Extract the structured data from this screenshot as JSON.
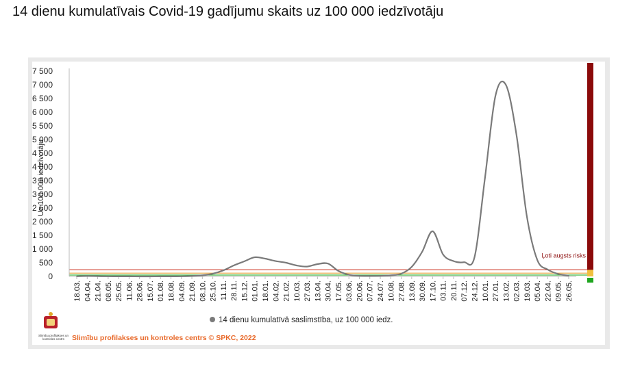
{
  "title": "14 dienu kumulatīvais Covid-19 gadījumu skaits uz 100 000 iedzīvotāju",
  "footer": "Slimību profilakses un kontroles centrs © SPKC, 2022",
  "logo_caption": "Slimību profilakses un kontroles centrs",
  "risk_label": "Ļoti augsts risks",
  "colors": {
    "series": "#7a7a7a",
    "risk_bar_high": "#8b0a0a",
    "risk_bar_low": "#1ea51e",
    "threshold_red": "#d14a3a",
    "threshold_orange": "#e6a23a",
    "threshold_green": "#3cb43c",
    "footer": "#e8692a"
  },
  "chart_data": {
    "type": "line",
    "title": "",
    "xlabel": "",
    "ylabel": "Uz 100 000 iedzīvotāju",
    "ylim": [
      0,
      7500
    ],
    "yticks": [
      0,
      500,
      1000,
      1500,
      2000,
      2500,
      3000,
      3500,
      4000,
      4500,
      5000,
      5500,
      6000,
      6500,
      7000,
      7500
    ],
    "ytick_labels": [
      "0",
      "500",
      "1 000",
      "1 500",
      "2 000",
      "2 500",
      "3 000",
      "3 500",
      "4 000",
      "4 500",
      "5 000",
      "5 500",
      "6 000",
      "6 500",
      "7 000",
      "7 500"
    ],
    "categories": [
      "18.03.",
      "04.04.",
      "21.04.",
      "08.05.",
      "25.05.",
      "11.06.",
      "28.06.",
      "15.07.",
      "01.08.",
      "18.08.",
      "04.09.",
      "21.09.",
      "08.10.",
      "25.10.",
      "11.11.",
      "28.11.",
      "15.12.",
      "01.01.",
      "18.01.",
      "04.02.",
      "21.02.",
      "10.03.",
      "27.03.",
      "13.04.",
      "30.04.",
      "17.05.",
      "03.06.",
      "20.06.",
      "07.07.",
      "24.07.",
      "10.08.",
      "27.08.",
      "13.09.",
      "30.09.",
      "17.10.",
      "03.11.",
      "20.11.",
      "07.12.",
      "24.12.",
      "10.01.",
      "27.01.",
      "13.02.",
      "02.03.",
      "19.03.",
      "05.04.",
      "22.04.",
      "09.05.",
      "26.05."
    ],
    "legend": {
      "position": "bottom",
      "entries": [
        "14 dienu kumulatīvā saslimstība, uz 100 000 iedz."
      ]
    },
    "grid": false,
    "series": [
      {
        "name": "14 dienu kumulatīvā saslimstība, uz 100 000 iedz.",
        "values": [
          5,
          15,
          10,
          5,
          3,
          2,
          1,
          1,
          2,
          3,
          5,
          15,
          40,
          100,
          220,
          400,
          550,
          700,
          650,
          560,
          500,
          400,
          360,
          450,
          470,
          200,
          60,
          20,
          15,
          20,
          40,
          100,
          350,
          900,
          1650,
          800,
          560,
          520,
          700,
          3600,
          6600,
          7000,
          5200,
          2200,
          600,
          250,
          90,
          30
        ]
      }
    ],
    "thresholds": [
      {
        "value": 240,
        "color": "#d14a3a"
      },
      {
        "value": 120,
        "color": "#e6a23a"
      },
      {
        "value": 50,
        "color": "#3cb43c"
      }
    ]
  }
}
